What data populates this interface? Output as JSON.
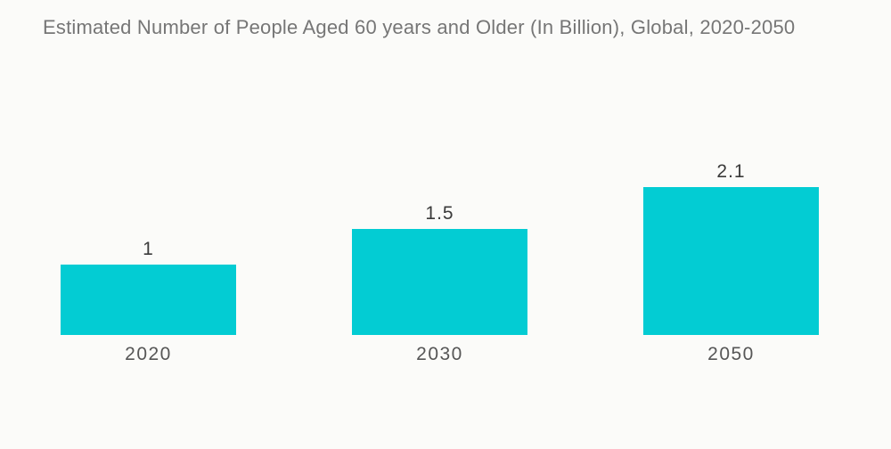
{
  "header": {
    "title": "Estimated Number of People Aged 60 years and Older (In Billion), Global, 2020-2050"
  },
  "chart_data": {
    "type": "bar",
    "title": "Estimated Number of People Aged 60 years and Older (In Billion), Global, 2020-2050",
    "categories": [
      "2020",
      "2030",
      "2050"
    ],
    "values": [
      1,
      1.5,
      2.1
    ],
    "value_labels": [
      "1",
      "1.5",
      "2.1"
    ],
    "xlabel": "",
    "ylabel": "",
    "ylim": [
      0,
      2.2
    ],
    "grid": false,
    "legend": false,
    "axes_visible": false,
    "bar_color": "#03CCD3"
  },
  "colors": {
    "background": "#FBFBF9",
    "bar": "#03CCD3",
    "title_text": "#767676",
    "value_text": "#3A3A3A",
    "category_text": "#565656"
  }
}
